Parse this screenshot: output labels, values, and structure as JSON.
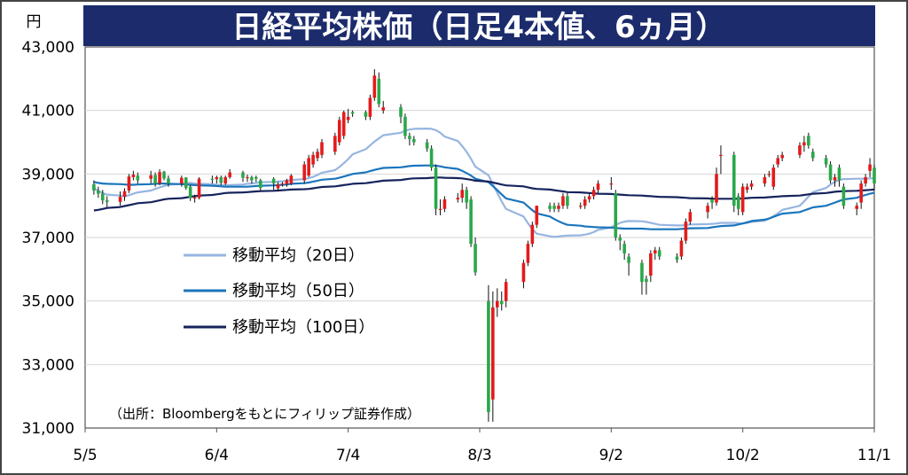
{
  "chart_data": {
    "type": "candlestick",
    "title": "日経平均株価（日足4本値、6ヵ月）",
    "y_unit_label": "円",
    "source_note": "（出所：Bloombergをもとにフィリップ証券作成）",
    "ylim": [
      31000,
      43000
    ],
    "y_ticks": [
      {
        "value": 43000,
        "label": "43,000"
      },
      {
        "value": 41000,
        "label": "41,000"
      },
      {
        "value": 39000,
        "label": "39,000"
      },
      {
        "value": 37000,
        "label": "37,000"
      },
      {
        "value": 35000,
        "label": "35,000"
      },
      {
        "value": 33000,
        "label": "33,000"
      },
      {
        "value": 31000,
        "label": "31,000"
      }
    ],
    "x_ticks": [
      "5/5",
      "6/4",
      "7/4",
      "8/3",
      "9/2",
      "10/2",
      "11/1"
    ],
    "x_start": "5/5",
    "x_end": "11/1",
    "colors": {
      "title_bg": "#1b2b6b",
      "up": "#e31b1b",
      "down": "#2aa84a",
      "ma20": "#97b5e0",
      "ma50": "#1b75bc",
      "ma100": "#16245c",
      "frame": "#555555",
      "grid": "#d6d6d6"
    },
    "legend": [
      {
        "label": "移動平均（20日）",
        "color": "#97b5e0"
      },
      {
        "label": "移動平均（50日）",
        "color": "#1b75bc"
      },
      {
        "label": "移動平均（100日）",
        "color": "#16245c"
      }
    ],
    "candles": {
      "dates": [
        "5/7",
        "5/8",
        "5/9",
        "5/10",
        "5/13",
        "5/14",
        "5/15",
        "5/16",
        "5/17",
        "5/20",
        "5/21",
        "5/22",
        "5/23",
        "5/24",
        "5/27",
        "5/28",
        "5/29",
        "5/30",
        "5/31",
        "6/3",
        "6/4",
        "6/5",
        "6/6",
        "6/7",
        "6/10",
        "6/11",
        "6/12",
        "6/13",
        "6/14",
        "6/17",
        "6/18",
        "6/19",
        "6/20",
        "6/21",
        "6/24",
        "6/25",
        "6/26",
        "6/27",
        "6/28",
        "7/1",
        "7/2",
        "7/3",
        "7/4",
        "7/5",
        "7/8",
        "7/9",
        "7/10",
        "7/11",
        "7/12",
        "7/16",
        "7/17",
        "7/18",
        "7/19",
        "7/22",
        "7/23",
        "7/24",
        "7/25",
        "7/26",
        "7/29",
        "7/30",
        "7/31",
        "8/1",
        "8/2",
        "8/5",
        "8/6",
        "8/7",
        "8/8",
        "8/9",
        "8/13",
        "8/14",
        "8/15",
        "8/16",
        "8/19",
        "8/20",
        "8/21",
        "8/22",
        "8/23",
        "8/26",
        "8/27",
        "8/28",
        "8/29",
        "8/30",
        "9/2",
        "9/3",
        "9/4",
        "9/5",
        "9/6",
        "9/9",
        "9/10",
        "9/11",
        "9/12",
        "9/13",
        "9/17",
        "9/18",
        "9/19",
        "9/20",
        "9/24",
        "9/25",
        "9/26",
        "9/27",
        "9/30",
        "10/1",
        "10/2",
        "10/3",
        "10/4",
        "10/7",
        "10/8",
        "10/9",
        "10/10",
        "10/11",
        "10/15",
        "10/16",
        "10/17",
        "10/18",
        "10/21",
        "10/22",
        "10/23",
        "10/24",
        "10/25",
        "10/28",
        "10/29",
        "10/30",
        "10/31",
        "11/1"
      ],
      "open": [
        38680,
        38480,
        38380,
        38170,
        38120,
        38280,
        38480,
        38900,
        38950,
        38850,
        38970,
        38700,
        39070,
        38860,
        38700,
        38890,
        38600,
        38240,
        38250,
        38850,
        38840,
        38900,
        38700,
        38900,
        39050,
        38880,
        38900,
        38900,
        38800,
        38850,
        38550,
        38700,
        38680,
        38700,
        38800,
        38950,
        39300,
        39500,
        39600,
        39700,
        40000,
        40200,
        40700,
        40950,
        40950,
        40800,
        41400,
        42000,
        41000,
        41100,
        40800,
        40200,
        40100,
        40000,
        39800,
        39200,
        37900,
        37900,
        38200,
        38250,
        38500,
        38200,
        36800,
        35000,
        31900,
        34800,
        35000,
        35000,
        35600,
        36200,
        36800,
        37400,
        38000,
        38000,
        37900,
        38000,
        38300,
        38000,
        38000,
        38200,
        38300,
        38500,
        38700,
        38400,
        37000,
        36800,
        36400,
        36200,
        35700,
        35800,
        36500,
        36600,
        36400,
        36400,
        36900,
        37500,
        37800,
        38200,
        38100,
        39600,
        39600,
        38300,
        37800,
        38500,
        38600,
        38700,
        39000,
        38600,
        39300,
        39500,
        39600,
        39900,
        40200,
        39700,
        39500,
        39300,
        38800,
        39200,
        38600,
        37900,
        38100,
        38700,
        39100,
        39200
      ],
      "close": [
        38480,
        38380,
        38170,
        38120,
        38280,
        38460,
        38920,
        38980,
        38800,
        38960,
        38690,
        39060,
        38860,
        38700,
        38880,
        38560,
        38240,
        38260,
        38850,
        38840,
        38900,
        38720,
        38900,
        39050,
        38880,
        38900,
        38800,
        38850,
        38560,
        38700,
        38670,
        38700,
        38800,
        38950,
        39300,
        39500,
        39600,
        39700,
        40000,
        40200,
        40700,
        40950,
        40800,
        40900,
        40800,
        41400,
        42100,
        41200,
        41100,
        40800,
        40200,
        40100,
        40000,
        39800,
        39200,
        37900,
        37900,
        38200,
        38250,
        38500,
        38100,
        36800,
        35900,
        31500,
        34800,
        35000,
        34900,
        35600,
        36200,
        36800,
        37400,
        38000,
        37900,
        37900,
        38000,
        38300,
        38000,
        38000,
        38200,
        38300,
        38500,
        38700,
        38700,
        37000,
        36900,
        36500,
        36200,
        35600,
        35600,
        36500,
        36600,
        36400,
        36300,
        36900,
        37500,
        37800,
        38000,
        38100,
        39000,
        39600,
        38000,
        37900,
        38600,
        38600,
        38700,
        38900,
        39000,
        39200,
        39500,
        39600,
        39900,
        40000,
        39900,
        39500,
        39300,
        38800,
        38900,
        38800,
        38000,
        38000,
        38700,
        38900,
        39300,
        38700
      ],
      "high": [
        38800,
        38600,
        38500,
        38300,
        38450,
        38550,
        39000,
        39100,
        39050,
        39100,
        39050,
        39150,
        39100,
        38950,
        38950,
        38900,
        38650,
        38350,
        38900,
        38950,
        38950,
        38950,
        38950,
        39150,
        39100,
        38980,
        38950,
        38950,
        38850,
        38900,
        38750,
        38750,
        38850,
        39000,
        39400,
        39600,
        39700,
        39800,
        40100,
        40300,
        40800,
        41000,
        41050,
        41000,
        41000,
        41500,
        42300,
        42200,
        41300,
        41200,
        40900,
        40300,
        40200,
        40100,
        39900,
        39300,
        38200,
        38300,
        38400,
        38700,
        38600,
        38300,
        37000,
        35500,
        35300,
        35400,
        35300,
        35700,
        36300,
        36900,
        37500,
        38000,
        38100,
        38100,
        38100,
        38400,
        38400,
        38100,
        38300,
        38400,
        38600,
        38800,
        38900,
        38500,
        37100,
        36900,
        36500,
        36300,
        35800,
        36600,
        36700,
        36700,
        36500,
        37000,
        37600,
        37900,
        38100,
        38300,
        39200,
        39900,
        39700,
        38400,
        38700,
        38700,
        38800,
        39000,
        39100,
        39300,
        39600,
        39700,
        40000,
        40200,
        40300,
        39800,
        39600,
        39400,
        39000,
        39300,
        38700,
        38100,
        38800,
        39000,
        39500,
        39300
      ],
      "low": [
        38350,
        38250,
        38050,
        37950,
        38000,
        38150,
        38400,
        38800,
        38700,
        38700,
        38600,
        38650,
        38800,
        38600,
        38600,
        38500,
        38150,
        38100,
        38200,
        38700,
        38700,
        38650,
        38650,
        38850,
        38750,
        38750,
        38700,
        38750,
        38450,
        38500,
        38450,
        38600,
        38600,
        38650,
        38700,
        38900,
        39200,
        39400,
        39500,
        39600,
        39900,
        40100,
        40600,
        40800,
        40700,
        40700,
        41300,
        41100,
        40900,
        40600,
        40100,
        39900,
        39900,
        39700,
        39100,
        37700,
        37700,
        37800,
        38100,
        38100,
        37900,
        36700,
        35800,
        31200,
        31200,
        34500,
        34700,
        34800,
        35400,
        36100,
        36700,
        37300,
        37800,
        37800,
        37800,
        37900,
        37900,
        37900,
        37900,
        38100,
        38200,
        38400,
        38500,
        36900,
        36600,
        36300,
        35800,
        35200,
        35200,
        35600,
        36300,
        36300,
        36200,
        36300,
        36800,
        37400,
        37600,
        37900,
        38000,
        39000,
        37800,
        37700,
        37700,
        38400,
        38500,
        38600,
        38900,
        38500,
        39200,
        39400,
        39500,
        39700,
        39800,
        39400,
        39200,
        38700,
        38600,
        38600,
        37900,
        37700,
        37900,
        38600,
        38900,
        38500
      ]
    },
    "moving_averages": {
      "ma20": [
        38550,
        38470,
        38400,
        38350,
        38320,
        38300,
        38330,
        38380,
        38420,
        38480,
        38530,
        38580,
        38620,
        38660,
        38690,
        38710,
        38720,
        38700,
        38690,
        38680,
        38660,
        38650,
        38640,
        38650,
        38670,
        38690,
        38700,
        38720,
        38740,
        38750,
        38760,
        38770,
        38790,
        38810,
        38840,
        38870,
        38910,
        38970,
        39040,
        39120,
        39220,
        39340,
        39470,
        39620,
        39780,
        39900,
        40020,
        40120,
        40220,
        40300,
        40360,
        40400,
        40420,
        40430,
        40420,
        40380,
        40300,
        40180,
        40040,
        39880,
        39700,
        39480,
        39230,
        38960,
        38680,
        38400,
        38140,
        37900,
        37660,
        37450,
        37260,
        37120,
        37040,
        37020,
        37030,
        37050,
        37060,
        37070,
        37090,
        37120,
        37170,
        37240,
        37320,
        37400,
        37460,
        37500,
        37520,
        37510,
        37490,
        37460,
        37430,
        37400,
        37380,
        37380,
        37390,
        37410,
        37420,
        37430,
        37440,
        37460,
        37460,
        37450,
        37440,
        37460,
        37490,
        37530,
        37590,
        37670,
        37760,
        37870,
        38000,
        38140,
        38290,
        38430,
        38560,
        38670,
        38750,
        38810,
        38840,
        38850,
        38850,
        38850,
        38860,
        38870
      ],
      "ma50": [
        38750,
        38720,
        38700,
        38690,
        38680,
        38670,
        38660,
        38660,
        38670,
        38680,
        38690,
        38700,
        38700,
        38690,
        38680,
        38670,
        38660,
        38650,
        38640,
        38630,
        38620,
        38610,
        38600,
        38600,
        38600,
        38600,
        38610,
        38620,
        38630,
        38640,
        38650,
        38660,
        38670,
        38690,
        38710,
        38730,
        38760,
        38790,
        38820,
        38850,
        38880,
        38920,
        38960,
        39000,
        39050,
        39090,
        39130,
        39160,
        39190,
        39210,
        39230,
        39250,
        39260,
        39270,
        39270,
        39260,
        39240,
        39210,
        39160,
        39100,
        39030,
        38950,
        38850,
        38740,
        38620,
        38490,
        38360,
        38230,
        38100,
        37980,
        37860,
        37760,
        37660,
        37580,
        37510,
        37450,
        37400,
        37370,
        37350,
        37340,
        37330,
        37320,
        37310,
        37300,
        37290,
        37280,
        37280,
        37280,
        37270,
        37260,
        37260,
        37260,
        37260,
        37270,
        37280,
        37290,
        37300,
        37320,
        37340,
        37360,
        37380,
        37410,
        37440,
        37480,
        37520,
        37560,
        37600,
        37650,
        37700,
        37750,
        37800,
        37850,
        37900,
        37950,
        38000,
        38050,
        38100,
        38150,
        38200,
        38250,
        38300,
        38340,
        38380,
        38410
      ],
      "ma100": [
        37850,
        37870,
        37900,
        37930,
        37960,
        37990,
        38020,
        38050,
        38080,
        38110,
        38140,
        38170,
        38200,
        38220,
        38240,
        38260,
        38280,
        38300,
        38320,
        38340,
        38360,
        38380,
        38400,
        38410,
        38420,
        38430,
        38440,
        38450,
        38460,
        38470,
        38480,
        38490,
        38500,
        38510,
        38520,
        38530,
        38550,
        38570,
        38590,
        38610,
        38630,
        38650,
        38670,
        38690,
        38710,
        38730,
        38750,
        38770,
        38790,
        38810,
        38830,
        38850,
        38860,
        38870,
        38880,
        38890,
        38890,
        38880,
        38870,
        38860,
        38840,
        38820,
        38790,
        38760,
        38730,
        38700,
        38670,
        38640,
        38610,
        38580,
        38550,
        38530,
        38510,
        38490,
        38470,
        38450,
        38430,
        38420,
        38410,
        38400,
        38390,
        38380,
        38370,
        38360,
        38350,
        38340,
        38330,
        38320,
        38310,
        38300,
        38290,
        38280,
        38270,
        38260,
        38250,
        38240,
        38230,
        38220,
        38220,
        38220,
        38220,
        38220,
        38230,
        38240,
        38250,
        38260,
        38270,
        38280,
        38290,
        38300,
        38320,
        38340,
        38360,
        38380,
        38400,
        38420,
        38440,
        38450,
        38460,
        38470,
        38480,
        38490,
        38500,
        38510
      ]
    }
  }
}
